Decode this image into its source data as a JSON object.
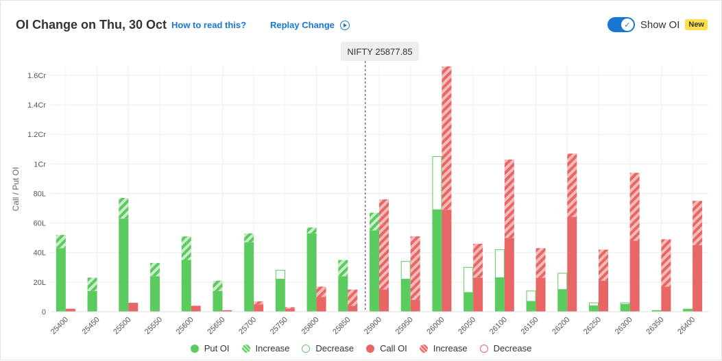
{
  "header": {
    "title": "OI Change on Thu, 30 Oct",
    "how_to_read": "How to read this?",
    "replay": "Replay Change",
    "toggle_label": "Show OI",
    "toggle_on": true,
    "badge": "New"
  },
  "spot_label": "NIFTY 25877.85",
  "legend": {
    "put_oi": "Put OI",
    "put_increase": "Increase",
    "put_decrease": "Decrease",
    "call_oi": "Call OI",
    "call_increase": "Increase",
    "call_decrease": "Decrease"
  },
  "colors": {
    "put": "#5ccb5f",
    "put_light": "#c9ecca",
    "call": "#e96666",
    "call_light": "#f5bcbc",
    "spot_line": "#333333"
  },
  "chart_data": {
    "type": "bar",
    "ylabel": "Call / Put OI",
    "xlabel": "",
    "ylim": [
      0,
      16600000
    ],
    "y_ticks": [
      0,
      2000000,
      4000000,
      6000000,
      8000000,
      10000000,
      12000000,
      14000000,
      16000000
    ],
    "y_tick_labels": [
      "0",
      "20L",
      "40L",
      "60L",
      "80L",
      "1Cr",
      "1.2Cr",
      "1.4Cr",
      "1.6Cr"
    ],
    "spot_value": 25877.85,
    "strikes": [
      "25400",
      "25450",
      "25500",
      "25550",
      "25600",
      "25650",
      "25700",
      "25750",
      "25800",
      "25850",
      "25900",
      "25950",
      "26000",
      "26050",
      "26100",
      "26150",
      "26200",
      "26250",
      "26300",
      "26350",
      "26400"
    ],
    "series": [
      {
        "name": "Put OI",
        "values": [
          4300000,
          1400000,
          6300000,
          2400000,
          3500000,
          1400000,
          4700000,
          2200000,
          5300000,
          2400000,
          5500000,
          2200000,
          6900000,
          1300000,
          2300000,
          700000,
          1500000,
          400000,
          500000,
          100000,
          200000
        ]
      },
      {
        "name": "Put OI Increase",
        "values": [
          900000,
          900000,
          1400000,
          900000,
          1600000,
          700000,
          600000,
          0,
          400000,
          1100000,
          1200000,
          0,
          0,
          0,
          0,
          0,
          0,
          0,
          0,
          0,
          0
        ]
      },
      {
        "name": "Put OI Decrease",
        "values": [
          0,
          0,
          0,
          0,
          0,
          0,
          0,
          600000,
          0,
          0,
          0,
          1200000,
          3600000,
          1700000,
          1900000,
          700000,
          1100000,
          200000,
          100000,
          0,
          0
        ]
      },
      {
        "name": "Call OI",
        "values": [
          200000,
          0,
          600000,
          0,
          400000,
          100000,
          500000,
          200000,
          1000000,
          400000,
          1500000,
          800000,
          6900000,
          2300000,
          5000000,
          2300000,
          6400000,
          2100000,
          4800000,
          1700000,
          4500000
        ]
      },
      {
        "name": "Call OI Increase",
        "values": [
          0,
          0,
          0,
          0,
          0,
          0,
          200000,
          100000,
          700000,
          1100000,
          6100000,
          4300000,
          9700000,
          2300000,
          5300000,
          2000000,
          4300000,
          2100000,
          4600000,
          3200000,
          3000000
        ]
      },
      {
        "name": "Call OI Decrease",
        "values": [
          0,
          0,
          0,
          0,
          0,
          0,
          0,
          0,
          0,
          0,
          0,
          0,
          0,
          0,
          0,
          0,
          0,
          0,
          0,
          0,
          0
        ]
      }
    ]
  }
}
